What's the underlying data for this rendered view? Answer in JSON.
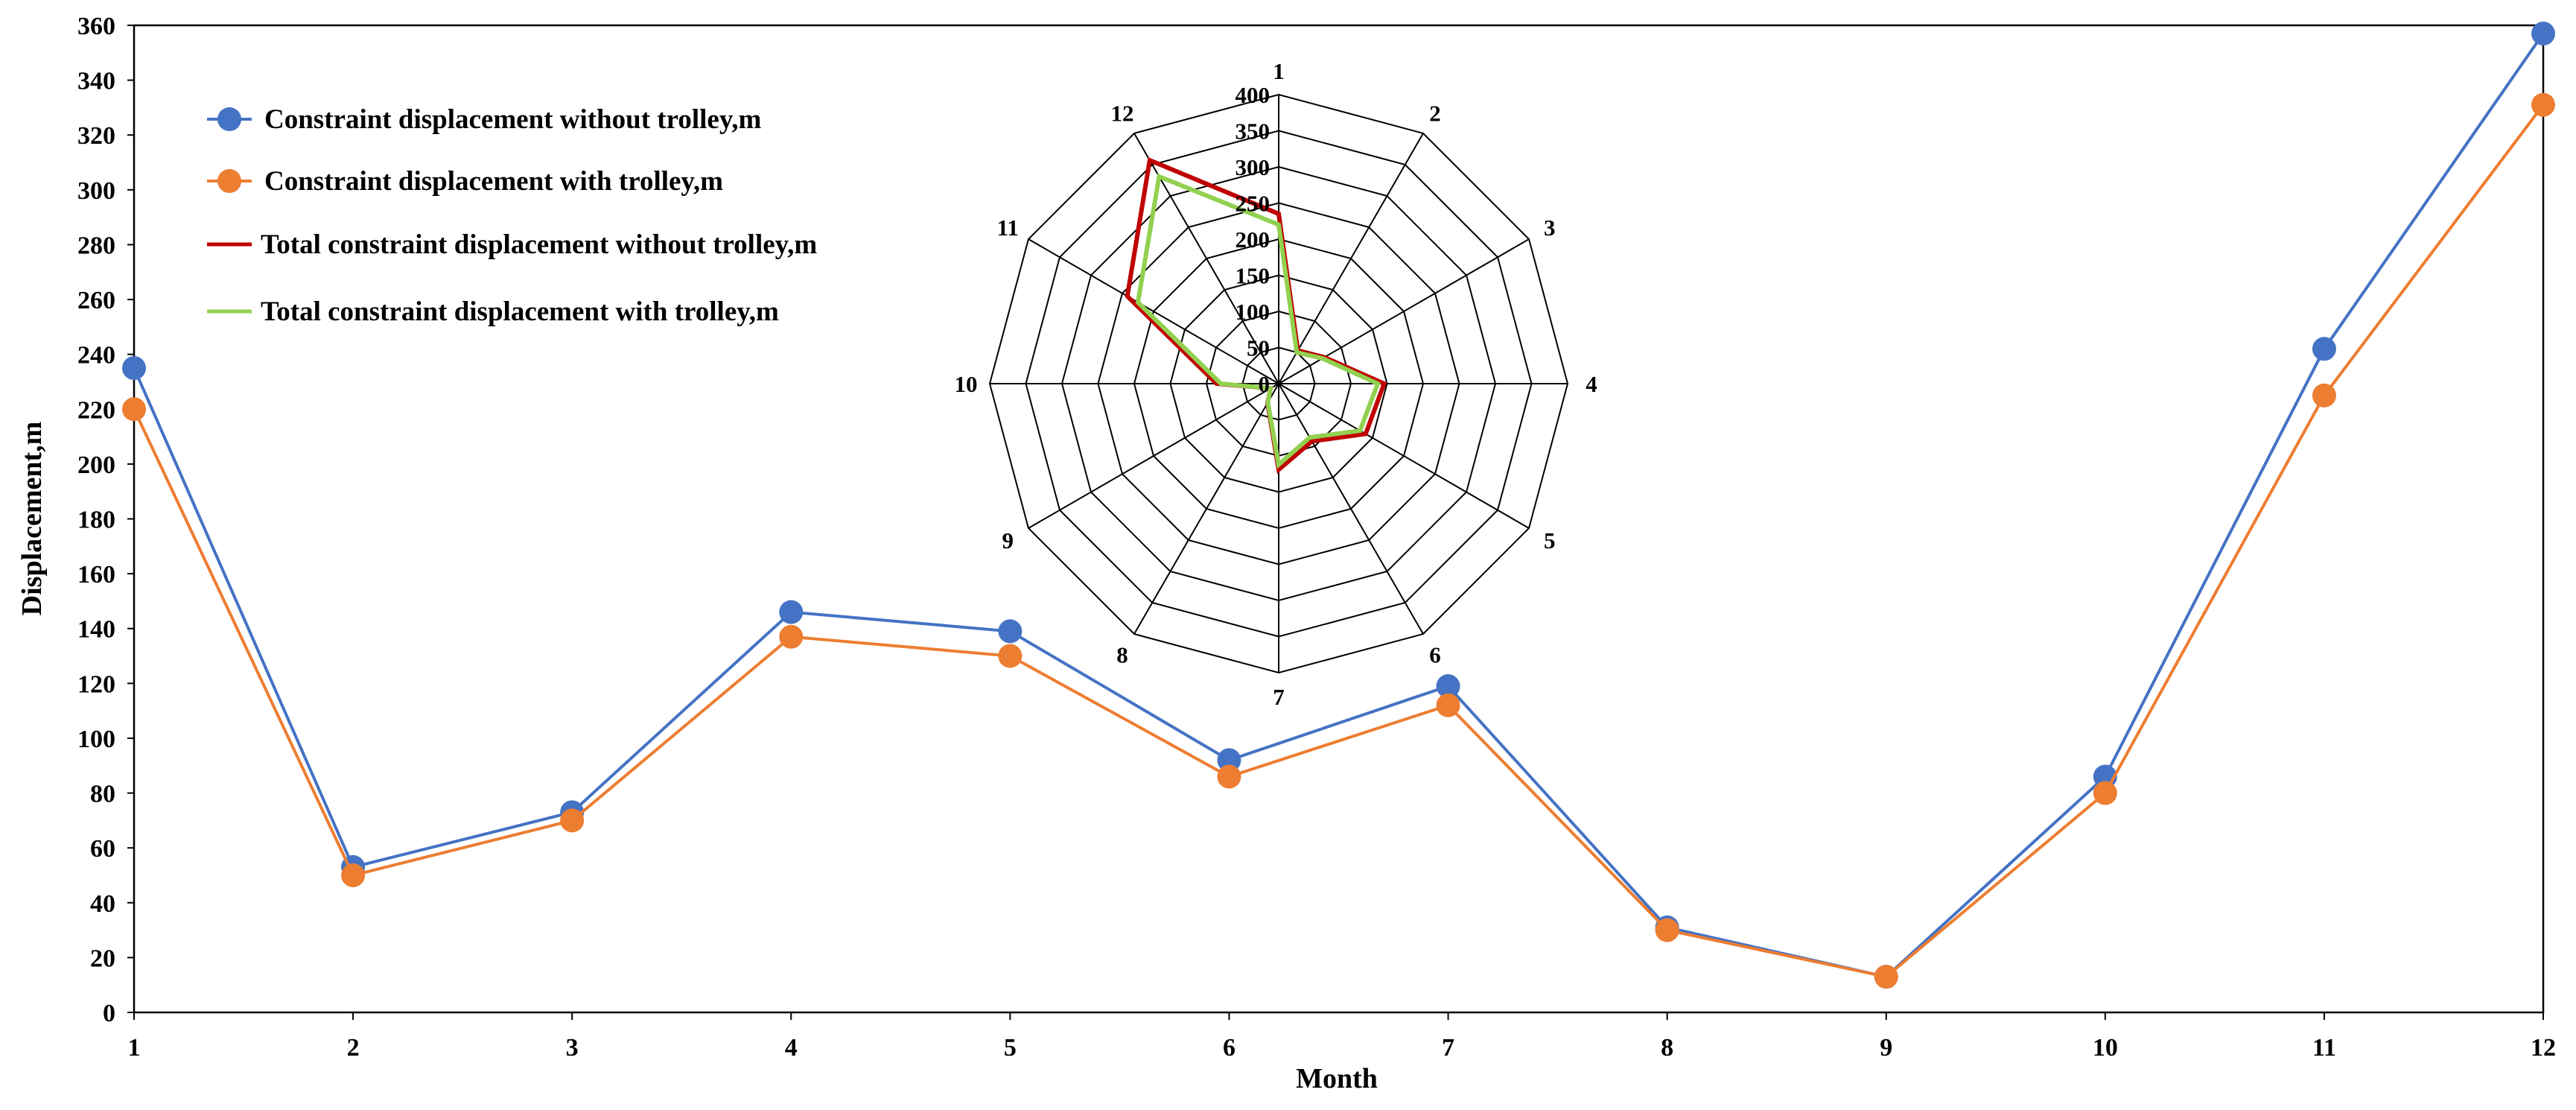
{
  "chart_data": [
    {
      "type": "line",
      "title": "",
      "xlabel": "Month",
      "ylabel": "Displacement,m",
      "categories": [
        "1",
        "2",
        "3",
        "4",
        "5",
        "6",
        "7",
        "8",
        "9",
        "10",
        "11",
        "12"
      ],
      "ylim": [
        0,
        360
      ],
      "yticks": [
        0,
        20,
        40,
        60,
        80,
        100,
        120,
        140,
        160,
        180,
        200,
        220,
        240,
        260,
        280,
        300,
        320,
        340,
        360
      ],
      "series": [
        {
          "name": "Constraint displacement without trolley,m",
          "color": "#4472c4",
          "values": [
            235,
            53,
            73,
            146,
            139,
            92,
            119,
            31,
            13,
            86,
            242,
            357
          ]
        },
        {
          "name": "Constraint displacement with trolley,m",
          "color": "#ed7d31",
          "values": [
            220,
            50,
            70,
            137,
            130,
            86,
            112,
            30,
            13,
            80,
            225,
            331
          ]
        }
      ]
    },
    {
      "type": "radar",
      "title": "",
      "categories": [
        "1",
        "2",
        "3",
        "4",
        "5",
        "6",
        "7",
        "8",
        "9",
        "10",
        "11",
        "12"
      ],
      "rlim": [
        0,
        400
      ],
      "rticks": [
        0,
        50,
        100,
        150,
        200,
        250,
        300,
        350,
        400
      ],
      "series": [
        {
          "name": "Total constraint displacement without trolley,m",
          "color": "#c00000",
          "values": [
            235,
            53,
            73,
            146,
            139,
            92,
            119,
            31,
            13,
            86,
            242,
            357
          ]
        },
        {
          "name": "Total constraint displacement with trolley,m",
          "color": "#92d050",
          "values": [
            220,
            50,
            70,
            137,
            130,
            86,
            112,
            30,
            13,
            80,
            225,
            331
          ]
        }
      ]
    }
  ],
  "legend": [
    {
      "label": "Constraint displacement without trolley,m",
      "color": "#4472c4",
      "kind": "marker-line"
    },
    {
      "label": "Constraint displacement with trolley,m",
      "color": "#ed7d31",
      "kind": "marker-line"
    },
    {
      "label": "Total constraint displacement without trolley,m",
      "color": "#c00000",
      "kind": "line"
    },
    {
      "label": "Total constraint displacement with trolley,m",
      "color": "#92d050",
      "kind": "line"
    }
  ]
}
